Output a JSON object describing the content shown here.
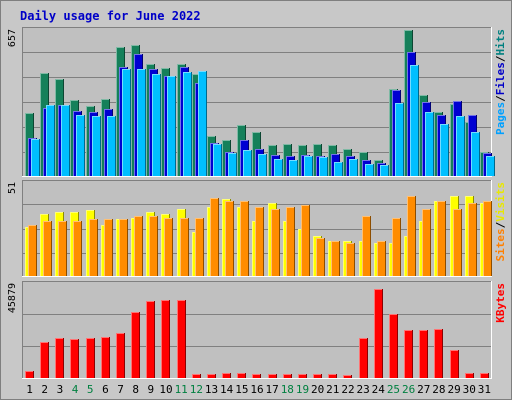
{
  "chart_data": {
    "type": "bar",
    "title": "Daily usage for June 2022",
    "categories": [
      "1",
      "2",
      "3",
      "4",
      "5",
      "6",
      "7",
      "8",
      "9",
      "10",
      "11",
      "12",
      "13",
      "14",
      "15",
      "16",
      "17",
      "18",
      "19",
      "20",
      "21",
      "22",
      "23",
      "24",
      "25",
      "26",
      "27",
      "28",
      "29",
      "30",
      "31"
    ],
    "weekend_days": [
      "4",
      "5",
      "11",
      "12",
      "18",
      "19",
      "25",
      "26"
    ],
    "panels": [
      {
        "name": "hits-files-pages",
        "ymax_label": "657",
        "ymax": 657,
        "axis_labels": [
          {
            "text": "Pages",
            "color": "#00a0ff"
          },
          {
            "text": "Files",
            "color": "#0000c8"
          },
          {
            "text": "Hits",
            "color": "#008080"
          }
        ],
        "series": [
          {
            "name": "Hits",
            "color": "#15805a",
            "values": [
              285,
              465,
              438,
              340,
              317,
              347,
              582,
              591,
              505,
              485,
              503,
              458,
              180,
              160,
              228,
              200,
              141,
              145,
              139,
              143,
              139,
              122,
              107,
              73,
              392,
              657,
              364,
              288,
              326,
              245,
              110
            ]
          },
          {
            "name": "Files",
            "color": "#0000d2",
            "values": [
              170,
              308,
              320,
              293,
              288,
              300,
              490,
              548,
              480,
              450,
              490,
              420,
              150,
              110,
              160,
              120,
              96,
              90,
              95,
              90,
              98,
              88,
              70,
              58,
              388,
              560,
              335,
              275,
              338,
              275,
              103
            ]
          },
          {
            "name": "Pages",
            "color": "#00bfff",
            "values": [
              165,
              318,
              318,
              275,
              270,
              270,
              480,
              480,
              460,
              450,
              470,
              473,
              145,
              105,
              118,
              98,
              75,
              70,
              90,
              85,
              65,
              75,
              55,
              50,
              330,
              500,
              290,
              235,
              270,
              200,
              90
            ]
          }
        ]
      },
      {
        "name": "visits-sites",
        "ymax_label": "51",
        "ymax": 51,
        "axis_labels": [
          {
            "text": "Sites",
            "color": "#ff8000"
          },
          {
            "text": "Visits",
            "color": "#e8e800"
          }
        ],
        "series": [
          {
            "name": "Visits",
            "color": "#ffff00",
            "values": [
              27,
              34,
              35,
              35,
              36,
              28,
              31,
              32,
              35,
              34,
              37,
              24,
              38,
              42,
              38,
              30,
              40,
              30,
              26,
              22,
              19,
              19,
              19,
              18,
              18,
              22,
              30,
              41,
              44,
              44,
              40
            ]
          },
          {
            "name": "Sites",
            "color": "#ff8c00",
            "values": [
              28,
              30,
              30,
              30,
              31,
              31,
              31,
              33,
              33,
              32,
              32,
              32,
              43,
              41,
              41,
              38,
              37,
              38,
              39,
              21,
              19,
              18,
              33,
              19,
              32,
              44,
              37,
              41,
              37,
              40,
              41
            ]
          }
        ]
      },
      {
        "name": "kbytes",
        "ymax_label": "45879",
        "ymax": 45879,
        "axis_labels": [
          {
            "text": "KBytes",
            "color": "#ff0000"
          }
        ],
        "series": [
          {
            "name": "KBytes",
            "color": "#ff0000",
            "values": [
              3400,
              17600,
              19400,
              19000,
              19500,
              19800,
              21800,
              32200,
              37500,
              38200,
              38200,
              1900,
              2100,
              2600,
              2300,
              2100,
              2000,
              2100,
              2000,
              1950,
              1900,
              1550,
              19600,
              43500,
              31000,
              23500,
              23300,
              23800,
              13800,
              2200,
              2200
            ]
          }
        ]
      }
    ]
  }
}
